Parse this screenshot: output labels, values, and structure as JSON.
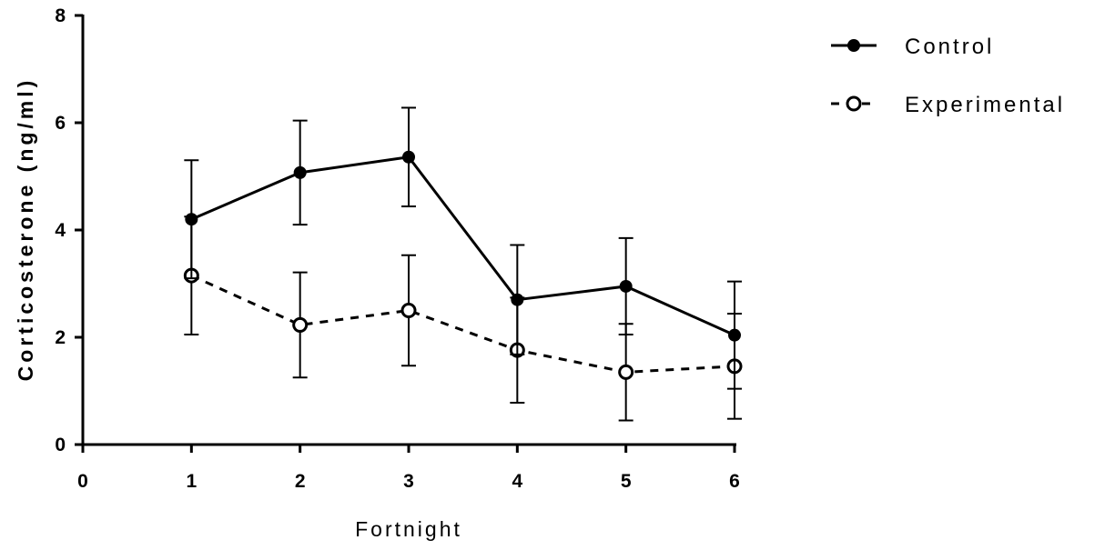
{
  "chart_data": {
    "type": "line",
    "title": "",
    "xlabel": "Fortnight",
    "ylabel": "Corticosterone (ng/ml)",
    "xlim": [
      0,
      6
    ],
    "ylim": [
      0,
      8
    ],
    "x_ticks": [
      "0",
      "1",
      "2",
      "3",
      "4",
      "5",
      "6"
    ],
    "y_ticks": [
      "0",
      "2",
      "4",
      "6",
      "8"
    ],
    "grid": false,
    "legend_position": "top-right",
    "x": [
      1,
      2,
      3,
      4,
      5,
      6
    ],
    "series": [
      {
        "name": "Control",
        "values": [
          4.2,
          5.07,
          5.36,
          2.7,
          2.95,
          2.04
        ],
        "error": [
          1.1,
          0.97,
          0.92,
          1.02,
          0.9,
          1.0
        ],
        "line_style": "solid",
        "marker": "filled-circle",
        "color": "#000000"
      },
      {
        "name": "Experimental",
        "values": [
          3.15,
          2.23,
          2.5,
          1.76,
          1.35,
          1.46
        ],
        "error": [
          1.1,
          0.98,
          1.03,
          0.98,
          0.9,
          0.98
        ],
        "line_style": "dashed",
        "marker": "open-circle",
        "color": "#000000"
      }
    ]
  }
}
